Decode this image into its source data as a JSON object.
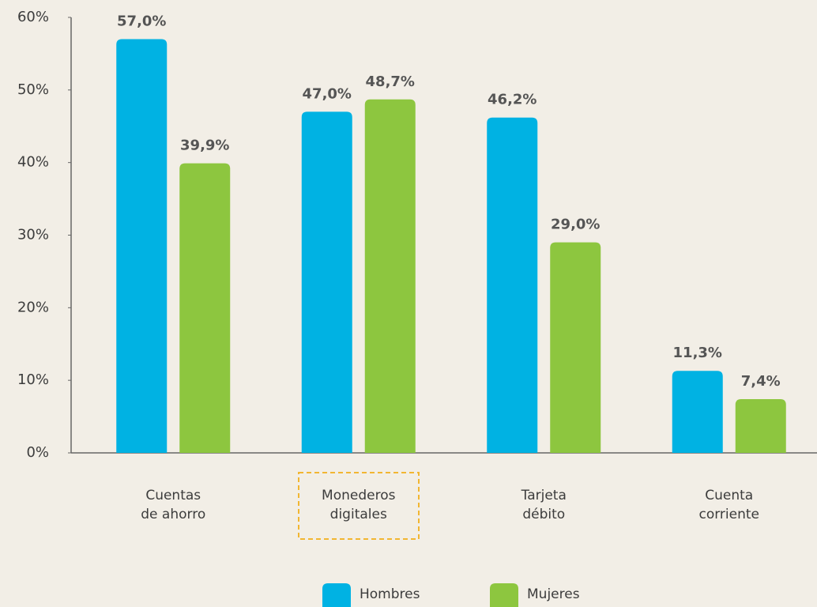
{
  "chart_data": {
    "type": "bar",
    "categories": [
      "Cuentas\nde ahorro",
      "Monederos\ndigitales",
      "Tarjeta\ndébito",
      "Cuenta\ncorriente"
    ],
    "series": [
      {
        "name": "Hombres",
        "color": "#00b2e3",
        "values": [
          57.0,
          47.0,
          46.2,
          11.3
        ],
        "value_labels": [
          "57,0%",
          "47,0%",
          "46,2%",
          "11,3%"
        ]
      },
      {
        "name": "Mujeres",
        "color": "#8dc63f",
        "values": [
          39.9,
          48.7,
          29.0,
          7.4
        ],
        "value_labels": [
          "39,9%",
          "48,7%",
          "29,0%",
          "7,4%"
        ]
      }
    ],
    "ylim": [
      0,
      60
    ],
    "yticks": [
      {
        "value": 0,
        "label": "0%"
      },
      {
        "value": 10,
        "label": "10%"
      },
      {
        "value": 20,
        "label": "20%"
      },
      {
        "value": 30,
        "label": "30%"
      },
      {
        "value": 40,
        "label": "40%"
      },
      {
        "value": 50,
        "label": "50%"
      },
      {
        "value": 60,
        "label": "60%"
      }
    ],
    "legend": "bottom"
  }
}
